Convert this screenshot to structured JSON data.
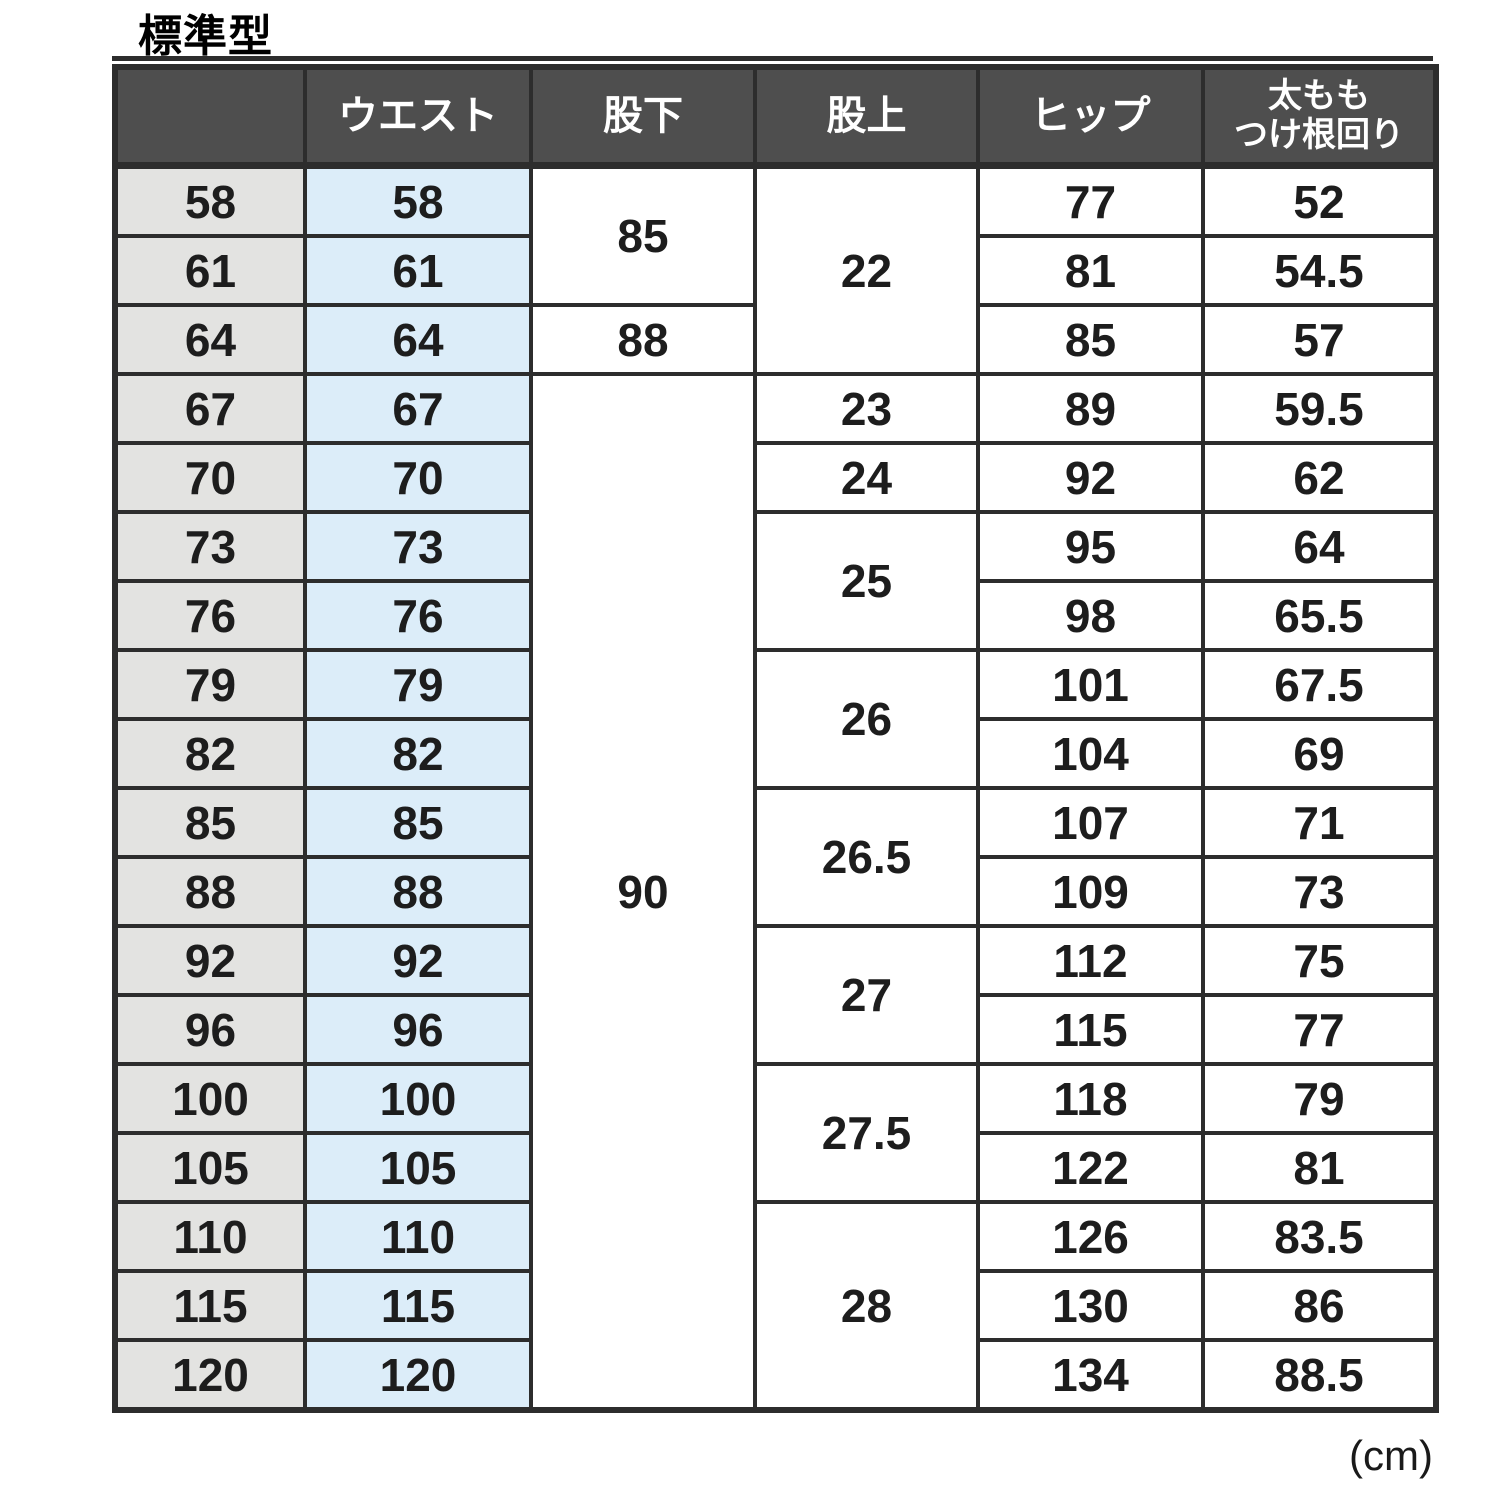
{
  "title": "標準型",
  "unit_note": "(cm)",
  "colors": {
    "header_bg": "#4e4e4e",
    "header_text": "#ffffff",
    "border": "#2d2d2d",
    "size_col_bg": "#e3e3e1",
    "waist_col_bg": "#dcedf9",
    "cell_text": "#1d1d1d"
  },
  "table": {
    "columns": [
      {
        "key": "size",
        "label": ""
      },
      {
        "key": "waist",
        "label": "ウエスト"
      },
      {
        "key": "inseam",
        "label": "股下"
      },
      {
        "key": "rise",
        "label": "股上"
      },
      {
        "key": "hip",
        "label": "ヒップ"
      },
      {
        "key": "thigh",
        "label": "太もも\nつけ根回り"
      }
    ],
    "rows": [
      [
        "58",
        "58",
        {
          "v": "85",
          "rs": 2
        },
        {
          "v": "22",
          "rs": 3
        },
        "77",
        "52"
      ],
      [
        "61",
        "61",
        null,
        null,
        "81",
        "54.5"
      ],
      [
        "64",
        "64",
        {
          "v": "88"
        },
        null,
        "85",
        "57"
      ],
      [
        "67",
        "67",
        {
          "v": "90",
          "rs": 15
        },
        {
          "v": "23"
        },
        "89",
        "59.5"
      ],
      [
        "70",
        "70",
        null,
        {
          "v": "24"
        },
        "92",
        "62"
      ],
      [
        "73",
        "73",
        null,
        {
          "v": "25",
          "rs": 2
        },
        "95",
        "64"
      ],
      [
        "76",
        "76",
        null,
        null,
        "98",
        "65.5"
      ],
      [
        "79",
        "79",
        null,
        {
          "v": "26",
          "rs": 2
        },
        "101",
        "67.5"
      ],
      [
        "82",
        "82",
        null,
        null,
        "104",
        "69"
      ],
      [
        "85",
        "85",
        null,
        {
          "v": "26.5",
          "rs": 2
        },
        "107",
        "71"
      ],
      [
        "88",
        "88",
        null,
        null,
        "109",
        "73"
      ],
      [
        "92",
        "92",
        null,
        {
          "v": "27",
          "rs": 2
        },
        "112",
        "75"
      ],
      [
        "96",
        "96",
        null,
        null,
        "115",
        "77"
      ],
      [
        "100",
        "100",
        null,
        {
          "v": "27.5",
          "rs": 2
        },
        "118",
        "79"
      ],
      [
        "105",
        "105",
        null,
        null,
        "122",
        "81"
      ],
      [
        "110",
        "110",
        null,
        {
          "v": "28",
          "rs": 3
        },
        "126",
        "83.5"
      ],
      [
        "115",
        "115",
        null,
        null,
        "130",
        "86"
      ],
      [
        "120",
        "120",
        null,
        null,
        "134",
        "88.5"
      ]
    ]
  }
}
